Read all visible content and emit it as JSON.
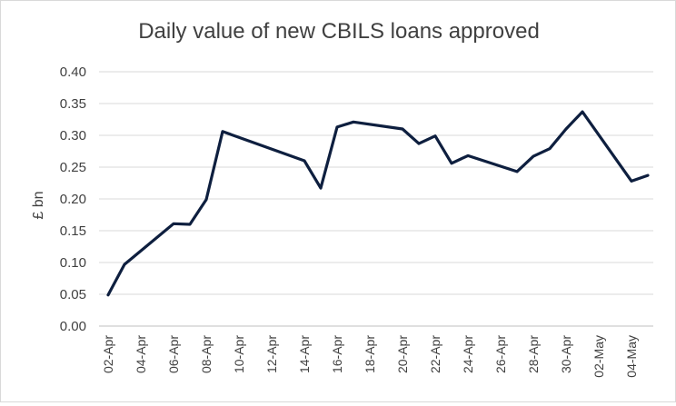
{
  "chart_data": {
    "type": "line",
    "title": "Daily value of new CBILS loans approved",
    "xlabel": "",
    "ylabel": "£ bn",
    "ylim": [
      0,
      0.4
    ],
    "yticks": [
      "0.00",
      "0.05",
      "0.10",
      "0.15",
      "0.20",
      "0.25",
      "0.30",
      "0.35",
      "0.40"
    ],
    "xtick_labels": [
      "02-Apr",
      "04-Apr",
      "06-Apr",
      "08-Apr",
      "10-Apr",
      "12-Apr",
      "14-Apr",
      "16-Apr",
      "18-Apr",
      "20-Apr",
      "22-Apr",
      "24-Apr",
      "26-Apr",
      "28-Apr",
      "30-Apr",
      "02-May",
      "04-May"
    ],
    "x_range": [
      "02-Apr",
      "05-May"
    ],
    "grid": "horizontal",
    "legend": "none",
    "line_color": "#0e1f3f",
    "series": [
      {
        "points": [
          {
            "x": "02-Apr",
            "y": 0.049
          },
          {
            "x": "03-Apr",
            "y": 0.097
          },
          {
            "x": "06-Apr",
            "y": 0.161
          },
          {
            "x": "07-Apr",
            "y": 0.16
          },
          {
            "x": "08-Apr",
            "y": 0.199
          },
          {
            "x": "09-Apr",
            "y": 0.306
          },
          {
            "x": "14-Apr",
            "y": 0.26
          },
          {
            "x": "15-Apr",
            "y": 0.217
          },
          {
            "x": "16-Apr",
            "y": 0.313
          },
          {
            "x": "17-Apr",
            "y": 0.321
          },
          {
            "x": "20-Apr",
            "y": 0.31
          },
          {
            "x": "21-Apr",
            "y": 0.287
          },
          {
            "x": "22-Apr",
            "y": 0.299
          },
          {
            "x": "23-Apr",
            "y": 0.256
          },
          {
            "x": "24-Apr",
            "y": 0.268
          },
          {
            "x": "27-Apr",
            "y": 0.243
          },
          {
            "x": "28-Apr",
            "y": 0.267
          },
          {
            "x": "29-Apr",
            "y": 0.279
          },
          {
            "x": "30-Apr",
            "y": 0.31
          },
          {
            "x": "01-May",
            "y": 0.337
          },
          {
            "x": "04-May",
            "y": 0.228
          },
          {
            "x": "05-May",
            "y": 0.237
          }
        ]
      }
    ]
  }
}
